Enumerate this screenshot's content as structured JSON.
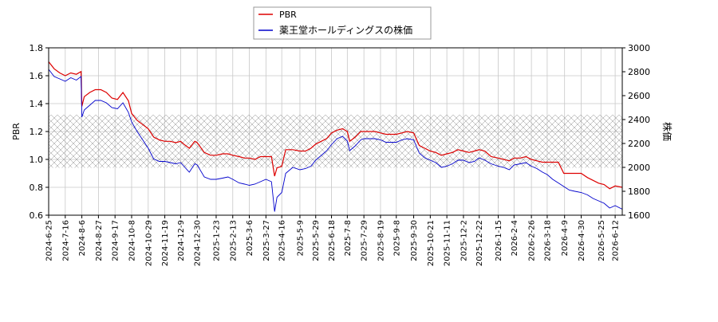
{
  "chart_data": {
    "type": "line",
    "title": "",
    "xlabel": "",
    "ylabel_left": "PBR",
    "ylabel_right": "株価",
    "ylim_left": [
      0.6,
      1.8
    ],
    "ylim_right": [
      1600,
      3000
    ],
    "yticks_left": [
      "0.6",
      "0.8",
      "1.0",
      "1.2",
      "1.4",
      "1.6",
      "1.8"
    ],
    "yticks_right": [
      "1600",
      "1800",
      "2000",
      "2200",
      "2400",
      "2600",
      "2800",
      "3000"
    ],
    "x_range": [
      "2024-6-25",
      "2026-6-21"
    ],
    "xticks": [
      "2024-6-25",
      "2024-7-16",
      "2024-8-6",
      "2024-8-27",
      "2024-9-17",
      "2024-10-8",
      "2024-10-29",
      "2024-11-19",
      "2024-12-9",
      "2024-12-30",
      "2025-1-23",
      "2025-2-13",
      "2025-3-6",
      "2025-3-27",
      "2025-4-16",
      "2025-5-9",
      "2025-5-29",
      "2025-6-18",
      "2025-7-8",
      "2025-7-29",
      "2025-8-19",
      "2025-9-8",
      "2025-9-30",
      "2025-10-21",
      "2025-11-11",
      "2025-12-2",
      "2025-12-22",
      "2026-1-15",
      "2026-2-4",
      "2026-2-26",
      "2026-3-18",
      "2026-4-9",
      "2026-4-30",
      "2026-5-25",
      "2026-6-12"
    ],
    "grid": true,
    "legend_position": "top-center",
    "hatched_band_left": [
      0.94,
      1.32
    ],
    "series": [
      {
        "name": "PBR",
        "axis": "left",
        "color": "#dd0000",
        "points": [
          [
            "2024-6-25",
            1.7
          ],
          [
            "2024-7-2",
            1.65
          ],
          [
            "2024-7-9",
            1.62
          ],
          [
            "2024-7-16",
            1.6
          ],
          [
            "2024-7-23",
            1.62
          ],
          [
            "2024-7-30",
            1.61
          ],
          [
            "2024-8-5",
            1.63
          ],
          [
            "2024-8-6",
            1.38
          ],
          [
            "2024-8-9",
            1.45
          ],
          [
            "2024-8-16",
            1.48
          ],
          [
            "2024-8-23",
            1.5
          ],
          [
            "2024-8-30",
            1.5
          ],
          [
            "2024-9-6",
            1.48
          ],
          [
            "2024-9-13",
            1.44
          ],
          [
            "2024-9-20",
            1.43
          ],
          [
            "2024-9-27",
            1.48
          ],
          [
            "2024-10-4",
            1.42
          ],
          [
            "2024-10-8",
            1.33
          ],
          [
            "2024-10-15",
            1.28
          ],
          [
            "2024-10-22",
            1.25
          ],
          [
            "2024-10-29",
            1.22
          ],
          [
            "2024-11-5",
            1.16
          ],
          [
            "2024-11-12",
            1.14
          ],
          [
            "2024-11-19",
            1.13
          ],
          [
            "2024-11-26",
            1.13
          ],
          [
            "2024-12-3",
            1.12
          ],
          [
            "2024-12-9",
            1.13
          ],
          [
            "2024-12-13",
            1.11
          ],
          [
            "2024-12-20",
            1.08
          ],
          [
            "2024-12-27",
            1.13
          ],
          [
            "2024-12-30",
            1.12
          ],
          [
            "2025-1-8",
            1.05
          ],
          [
            "2025-1-16",
            1.03
          ],
          [
            "2025-1-23",
            1.03
          ],
          [
            "2025-1-31",
            1.04
          ],
          [
            "2025-2-7",
            1.04
          ],
          [
            "2025-2-13",
            1.03
          ],
          [
            "2025-2-21",
            1.02
          ],
          [
            "2025-2-28",
            1.01
          ],
          [
            "2025-3-6",
            1.01
          ],
          [
            "2025-3-13",
            1.0
          ],
          [
            "2025-3-20",
            1.02
          ],
          [
            "2025-3-27",
            1.02
          ],
          [
            "2025-4-3",
            1.02
          ],
          [
            "2025-4-7",
            0.88
          ],
          [
            "2025-4-10",
            0.94
          ],
          [
            "2025-4-16",
            0.95
          ],
          [
            "2025-4-21",
            1.07
          ],
          [
            "2025-4-30",
            1.07
          ],
          [
            "2025-5-9",
            1.06
          ],
          [
            "2025-5-16",
            1.06
          ],
          [
            "2025-5-23",
            1.08
          ],
          [
            "2025-5-29",
            1.11
          ],
          [
            "2025-6-5",
            1.13
          ],
          [
            "2025-6-12",
            1.15
          ],
          [
            "2025-6-18",
            1.19
          ],
          [
            "2025-6-25",
            1.21
          ],
          [
            "2025-7-2",
            1.22
          ],
          [
            "2025-7-8",
            1.2
          ],
          [
            "2025-7-11",
            1.13
          ],
          [
            "2025-7-18",
            1.16
          ],
          [
            "2025-7-25",
            1.2
          ],
          [
            "2025-7-29",
            1.2
          ],
          [
            "2025-8-5",
            1.2
          ],
          [
            "2025-8-12",
            1.2
          ],
          [
            "2025-8-19",
            1.19
          ],
          [
            "2025-8-26",
            1.18
          ],
          [
            "2025-9-2",
            1.18
          ],
          [
            "2025-9-8",
            1.18
          ],
          [
            "2025-9-15",
            1.19
          ],
          [
            "2025-9-22",
            1.2
          ],
          [
            "2025-9-30",
            1.19
          ],
          [
            "2025-10-7",
            1.1
          ],
          [
            "2025-10-14",
            1.08
          ],
          [
            "2025-10-21",
            1.06
          ],
          [
            "2025-10-28",
            1.05
          ],
          [
            "2025-11-4",
            1.03
          ],
          [
            "2025-11-11",
            1.04
          ],
          [
            "2025-11-18",
            1.05
          ],
          [
            "2025-11-25",
            1.07
          ],
          [
            "2025-12-2",
            1.06
          ],
          [
            "2025-12-9",
            1.05
          ],
          [
            "2025-12-16",
            1.06
          ],
          [
            "2025-12-22",
            1.07
          ],
          [
            "2025-12-29",
            1.06
          ],
          [
            "2026-1-6",
            1.02
          ],
          [
            "2026-1-15",
            1.01
          ],
          [
            "2026-1-22",
            1.0
          ],
          [
            "2026-1-29",
            0.99
          ],
          [
            "2026-2-4",
            1.01
          ],
          [
            "2026-2-12",
            1.01
          ],
          [
            "2026-2-19",
            1.02
          ],
          [
            "2026-2-26",
            1.0
          ],
          [
            "2026-3-5",
            0.99
          ],
          [
            "2026-3-12",
            0.98
          ],
          [
            "2026-3-18",
            0.98
          ],
          [
            "2026-3-25",
            0.98
          ],
          [
            "2026-4-1",
            0.98
          ],
          [
            "2026-4-8",
            0.9
          ],
          [
            "2026-4-15",
            0.9
          ],
          [
            "2026-4-22",
            0.9
          ],
          [
            "2026-4-30",
            0.9
          ],
          [
            "2026-5-8",
            0.87
          ],
          [
            "2026-5-15",
            0.85
          ],
          [
            "2026-5-22",
            0.83
          ],
          [
            "2026-5-29",
            0.82
          ],
          [
            "2026-6-5",
            0.79
          ],
          [
            "2026-6-12",
            0.81
          ],
          [
            "2026-6-21",
            0.8
          ]
        ]
      },
      {
        "name": "薬王堂ホールディングスの株価",
        "axis": "right",
        "color": "#0000cc",
        "points": [
          [
            "2024-6-25",
            2820
          ],
          [
            "2024-7-2",
            2760
          ],
          [
            "2024-7-9",
            2740
          ],
          [
            "2024-7-16",
            2720
          ],
          [
            "2024-7-23",
            2750
          ],
          [
            "2024-7-30",
            2730
          ],
          [
            "2024-8-5",
            2760
          ],
          [
            "2024-8-6",
            2420
          ],
          [
            "2024-8-9",
            2480
          ],
          [
            "2024-8-16",
            2520
          ],
          [
            "2024-8-23",
            2560
          ],
          [
            "2024-8-30",
            2560
          ],
          [
            "2024-9-6",
            2540
          ],
          [
            "2024-9-13",
            2500
          ],
          [
            "2024-9-20",
            2490
          ],
          [
            "2024-9-27",
            2540
          ],
          [
            "2024-10-4",
            2460
          ],
          [
            "2024-10-8",
            2380
          ],
          [
            "2024-10-15",
            2300
          ],
          [
            "2024-10-22",
            2230
          ],
          [
            "2024-10-29",
            2160
          ],
          [
            "2024-11-5",
            2070
          ],
          [
            "2024-11-12",
            2050
          ],
          [
            "2024-11-19",
            2050
          ],
          [
            "2024-11-26",
            2040
          ],
          [
            "2024-12-3",
            2030
          ],
          [
            "2024-12-9",
            2040
          ],
          [
            "2024-12-13",
            2010
          ],
          [
            "2024-12-20",
            1960
          ],
          [
            "2024-12-27",
            2030
          ],
          [
            "2024-12-30",
            2020
          ],
          [
            "2025-1-8",
            1920
          ],
          [
            "2025-1-16",
            1900
          ],
          [
            "2025-1-23",
            1900
          ],
          [
            "2025-1-31",
            1910
          ],
          [
            "2025-2-7",
            1920
          ],
          [
            "2025-2-13",
            1900
          ],
          [
            "2025-2-21",
            1870
          ],
          [
            "2025-2-28",
            1860
          ],
          [
            "2025-3-6",
            1850
          ],
          [
            "2025-3-13",
            1860
          ],
          [
            "2025-3-20",
            1880
          ],
          [
            "2025-3-27",
            1900
          ],
          [
            "2025-4-3",
            1880
          ],
          [
            "2025-4-7",
            1630
          ],
          [
            "2025-4-10",
            1750
          ],
          [
            "2025-4-16",
            1790
          ],
          [
            "2025-4-21",
            1950
          ],
          [
            "2025-4-30",
            2000
          ],
          [
            "2025-5-9",
            1980
          ],
          [
            "2025-5-16",
            1990
          ],
          [
            "2025-5-23",
            2010
          ],
          [
            "2025-5-29",
            2060
          ],
          [
            "2025-6-5",
            2100
          ],
          [
            "2025-6-12",
            2140
          ],
          [
            "2025-6-18",
            2190
          ],
          [
            "2025-6-25",
            2240
          ],
          [
            "2025-7-2",
            2260
          ],
          [
            "2025-7-8",
            2220
          ],
          [
            "2025-7-11",
            2140
          ],
          [
            "2025-7-18",
            2180
          ],
          [
            "2025-7-25",
            2230
          ],
          [
            "2025-7-29",
            2240
          ],
          [
            "2025-8-5",
            2240
          ],
          [
            "2025-8-12",
            2240
          ],
          [
            "2025-8-19",
            2230
          ],
          [
            "2025-8-26",
            2210
          ],
          [
            "2025-9-2",
            2210
          ],
          [
            "2025-9-8",
            2210
          ],
          [
            "2025-9-15",
            2230
          ],
          [
            "2025-9-22",
            2240
          ],
          [
            "2025-9-30",
            2230
          ],
          [
            "2025-10-7",
            2120
          ],
          [
            "2025-10-14",
            2080
          ],
          [
            "2025-10-21",
            2060
          ],
          [
            "2025-10-28",
            2040
          ],
          [
            "2025-11-4",
            2000
          ],
          [
            "2025-11-11",
            2010
          ],
          [
            "2025-11-18",
            2030
          ],
          [
            "2025-11-25",
            2060
          ],
          [
            "2025-12-2",
            2060
          ],
          [
            "2025-12-9",
            2040
          ],
          [
            "2025-12-16",
            2050
          ],
          [
            "2025-12-22",
            2080
          ],
          [
            "2025-12-29",
            2060
          ],
          [
            "2026-1-6",
            2030
          ],
          [
            "2026-1-15",
            2010
          ],
          [
            "2026-1-22",
            2000
          ],
          [
            "2026-1-29",
            1980
          ],
          [
            "2026-2-4",
            2020
          ],
          [
            "2026-2-12",
            2030
          ],
          [
            "2026-2-19",
            2040
          ],
          [
            "2026-2-26",
            2010
          ],
          [
            "2026-3-5",
            1990
          ],
          [
            "2026-3-12",
            1960
          ],
          [
            "2026-3-18",
            1940
          ],
          [
            "2026-3-25",
            1900
          ],
          [
            "2026-4-1",
            1870
          ],
          [
            "2026-4-8",
            1840
          ],
          [
            "2026-4-15",
            1810
          ],
          [
            "2026-4-22",
            1800
          ],
          [
            "2026-4-30",
            1790
          ],
          [
            "2026-5-8",
            1770
          ],
          [
            "2026-5-15",
            1740
          ],
          [
            "2026-5-22",
            1720
          ],
          [
            "2026-5-29",
            1700
          ],
          [
            "2026-6-5",
            1660
          ],
          [
            "2026-6-12",
            1680
          ],
          [
            "2026-6-21",
            1650
          ]
        ]
      }
    ]
  }
}
